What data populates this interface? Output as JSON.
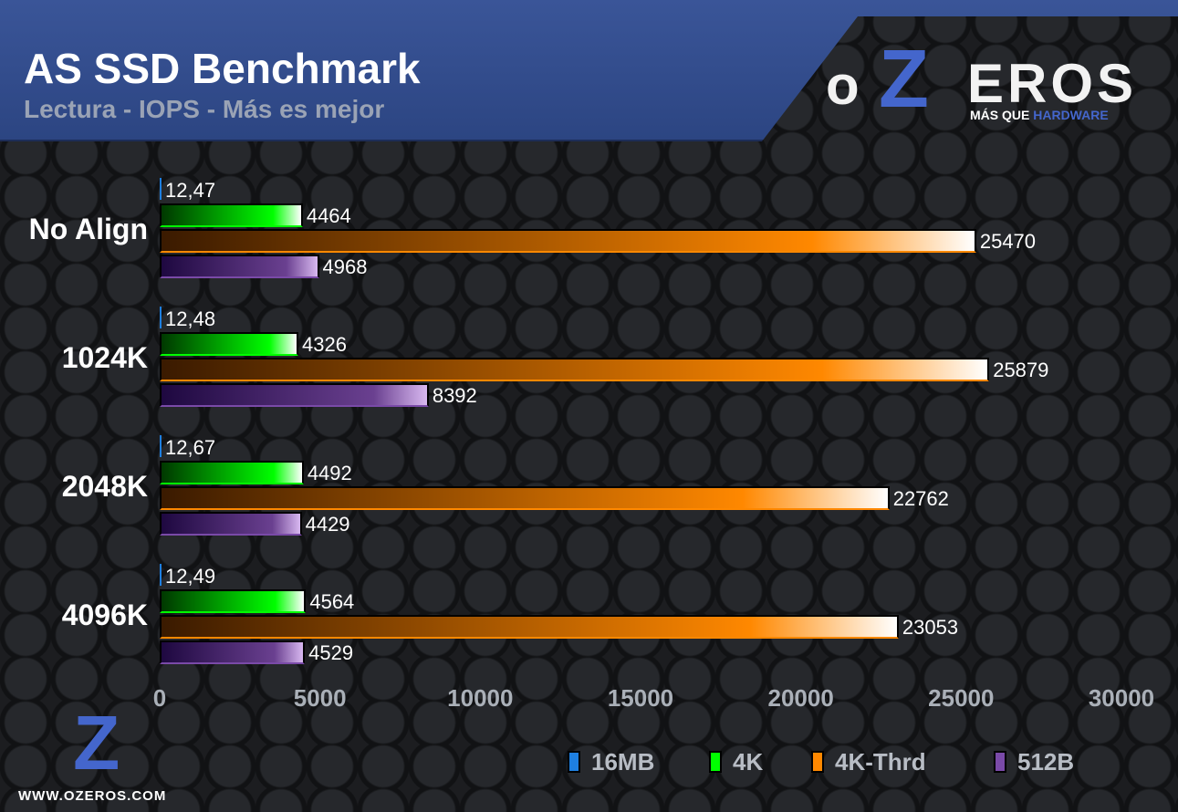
{
  "header": {
    "title": "AS SSD Benchmark",
    "subtitle": "Lectura - IOPS - Más es mejor"
  },
  "logo": {
    "o": "o",
    "z": "Z",
    "eros": "EROS",
    "tag1": "MÁS QUE",
    "tag2": "HARDWARE",
    "url": "WWW.OZEROS.COM"
  },
  "chart_data": {
    "type": "bar",
    "orientation": "horizontal",
    "title": "AS SSD Benchmark",
    "subtitle": "Lectura - IOPS - Más es mejor",
    "categories": [
      "No Align",
      "1024K",
      "2048K",
      "4096K"
    ],
    "series": [
      {
        "name": "16MB",
        "values": [
          12.47,
          12.48,
          12.67,
          12.49
        ],
        "labels": [
          "12,47",
          "12,48",
          "12,67",
          "12,49"
        ],
        "color": "#1e7fe0"
      },
      {
        "name": "4K",
        "values": [
          4464,
          4326,
          4492,
          4564
        ],
        "labels": [
          "4464",
          "4326",
          "4492",
          "4564"
        ],
        "color": "#00ff00"
      },
      {
        "name": "4K-Thrd",
        "values": [
          25470,
          25879,
          22762,
          23053
        ],
        "labels": [
          "25470",
          "25879",
          "22762",
          "23053"
        ],
        "color": "#ff8800"
      },
      {
        "name": "512B",
        "values": [
          4968,
          8392,
          4429,
          4529
        ],
        "labels": [
          "4968",
          "8392",
          "4429",
          "4529"
        ],
        "color": "#7a4aa8"
      }
    ],
    "xlim": [
      0,
      30000
    ],
    "xticks": [
      "0",
      "5000",
      "10000",
      "15000",
      "20000",
      "25000",
      "30000"
    ],
    "legend": "bottom-right"
  }
}
